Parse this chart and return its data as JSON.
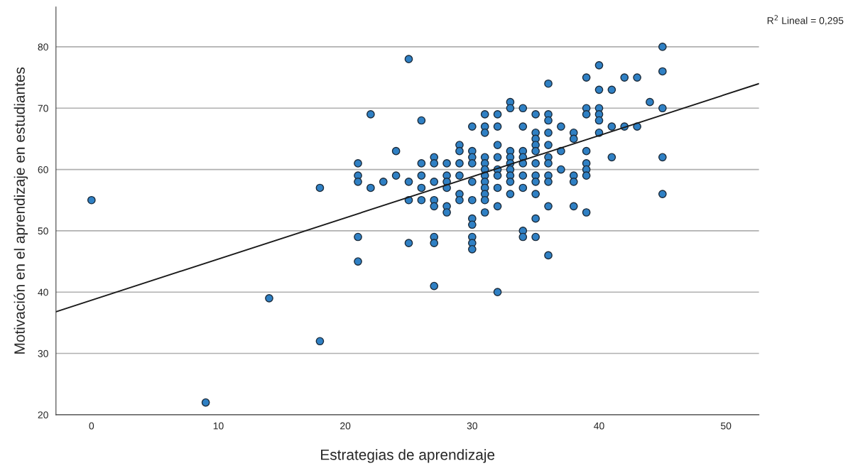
{
  "chart_data": {
    "type": "scatter",
    "xlabel": "Estrategias de aprendizaje",
    "ylabel": "Motivación en el aprendizaje en estudiantes",
    "annotations": [
      "R$^{2}$ Lineal = 0,295"
    ],
    "series": [
      {
        "color": "#2f80c4",
        "marker": "circle",
        "x": [
          0,
          9,
          14,
          18,
          18,
          21,
          21,
          21,
          21,
          21,
          22,
          22,
          23,
          24,
          24,
          25,
          25,
          25,
          25,
          26,
          26,
          26,
          26,
          26,
          27,
          27,
          27,
          27,
          27,
          27,
          27,
          27,
          28,
          28,
          28,
          28,
          28,
          28,
          29,
          29,
          29,
          29,
          29,
          29,
          30,
          30,
          30,
          30,
          30,
          30,
          30,
          30,
          30,
          30,
          30,
          31,
          31,
          31,
          31,
          31,
          31,
          31,
          31,
          31,
          31,
          31,
          31,
          32,
          32,
          32,
          32,
          32,
          32,
          32,
          32,
          32,
          33,
          33,
          33,
          33,
          33,
          33,
          33,
          33,
          33,
          34,
          34,
          34,
          34,
          34,
          34,
          34,
          34,
          34,
          35,
          35,
          35,
          35,
          35,
          35,
          35,
          35,
          35,
          35,
          35,
          36,
          36,
          36,
          36,
          36,
          36,
          36,
          36,
          36,
          36,
          36,
          37,
          37,
          37,
          38,
          38,
          38,
          38,
          38,
          39,
          39,
          39,
          39,
          39,
          39,
          39,
          39,
          40,
          40,
          40,
          40,
          40,
          40,
          41,
          41,
          41,
          42,
          42,
          43,
          43,
          44,
          45,
          45,
          45,
          45,
          45
        ],
        "values": [
          55,
          22,
          39,
          57,
          32,
          61,
          59,
          58,
          49,
          45,
          69,
          57,
          58,
          63,
          59,
          78,
          58,
          55,
          48,
          68,
          61,
          59,
          57,
          55,
          62,
          61,
          58,
          55,
          54,
          49,
          48,
          41,
          61,
          59,
          58,
          57,
          54,
          53,
          64,
          63,
          61,
          59,
          56,
          55,
          67,
          63,
          62,
          61,
          58,
          55,
          52,
          51,
          49,
          48,
          47,
          69,
          67,
          66,
          62,
          61,
          60,
          59,
          58,
          57,
          56,
          55,
          53,
          69,
          67,
          64,
          62,
          60,
          59,
          57,
          54,
          40,
          71,
          70,
          63,
          62,
          61,
          60,
          59,
          58,
          56,
          70,
          67,
          63,
          62,
          61,
          59,
          57,
          50,
          49,
          69,
          66,
          65,
          64,
          63,
          61,
          59,
          58,
          56,
          52,
          49,
          74,
          69,
          68,
          66,
          64,
          62,
          61,
          59,
          58,
          54,
          46,
          67,
          63,
          60,
          66,
          65,
          59,
          58,
          54,
          75,
          70,
          69,
          63,
          61,
          60,
          59,
          53,
          77,
          73,
          70,
          69,
          68,
          66,
          73,
          67,
          62,
          75,
          67,
          75,
          67,
          71,
          80,
          76,
          70,
          62,
          56
        ]
      },
      {
        "type": "line",
        "color": "#1a1a1a",
        "marker": "none",
        "line_style": "solid",
        "x": [
          -2.8,
          52.6
        ],
        "values": [
          36.8,
          74.0
        ]
      }
    ],
    "xlim": [
      -2.8,
      52.6
    ],
    "ylim": [
      20,
      86.5
    ],
    "xticks": [
      0,
      10,
      20,
      30,
      40,
      50
    ],
    "yticks": [
      20,
      30,
      40,
      50,
      60,
      70,
      80
    ],
    "grid": "y",
    "legend": false
  }
}
